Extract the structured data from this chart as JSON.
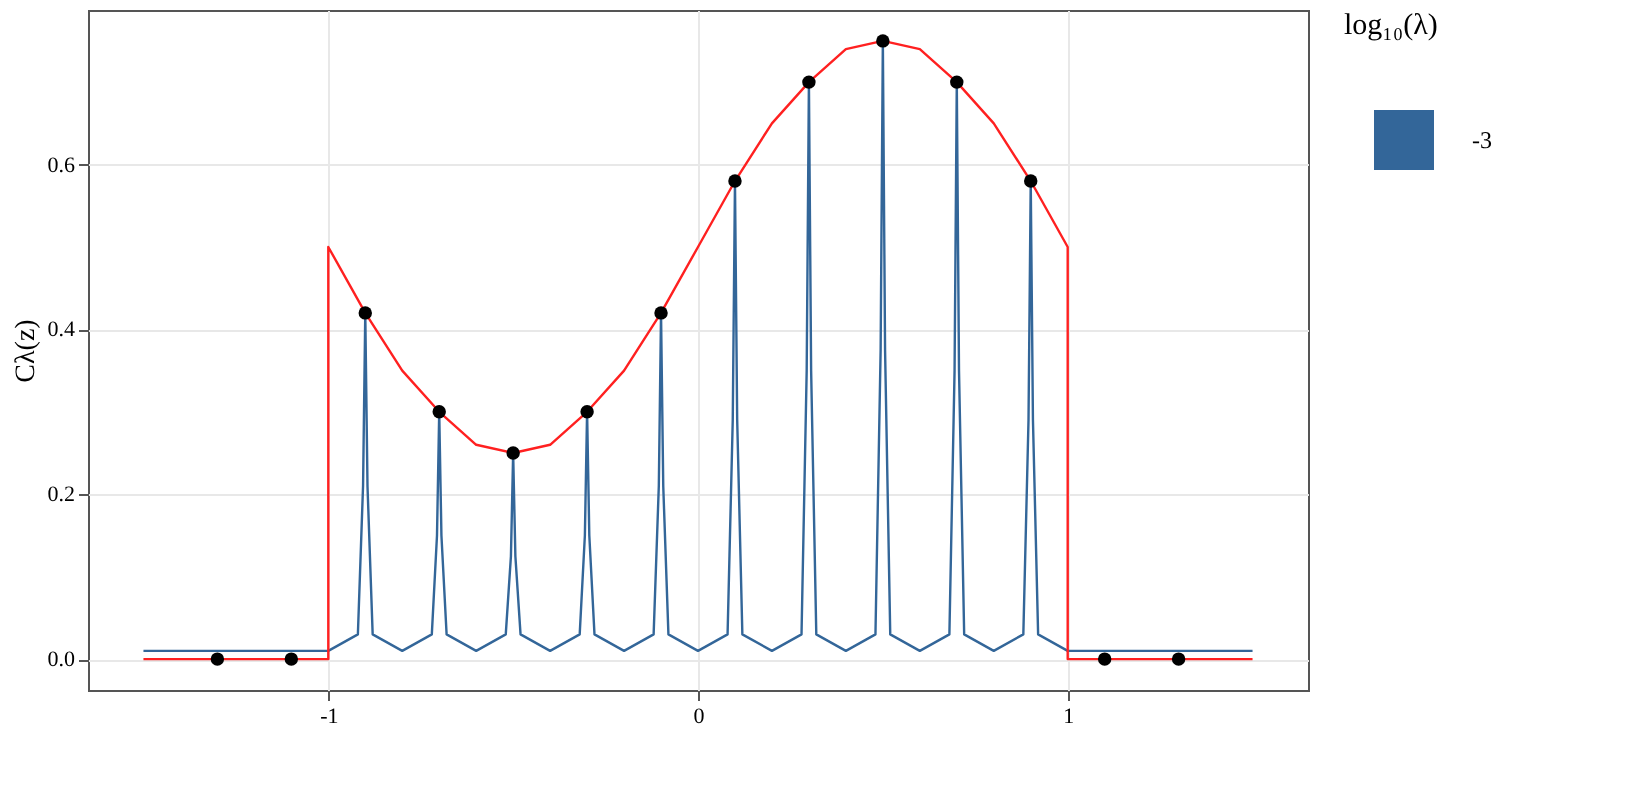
{
  "chart_data": {
    "type": "line",
    "ylabel": "Cλ(z)",
    "legend_title": "log₁₀(λ)",
    "legend": "right",
    "grid": true,
    "xlim": [
      -1.65,
      1.65
    ],
    "xticks": [
      -1,
      0,
      1
    ],
    "ylim": [
      -0.0375,
      0.7875
    ],
    "yticks": [
      {
        "value": 0,
        "label": "0.0"
      },
      {
        "value": 0.2,
        "label": "0.2"
      },
      {
        "value": 0.4,
        "label": "0.4"
      },
      {
        "value": 0.6,
        "label": "0.6"
      }
    ],
    "series": [
      {
        "name": "-3",
        "color": "#336699",
        "x": [
          -1.5,
          -1.0,
          -0.92,
          -0.906,
          -0.9,
          -0.894,
          -0.88,
          -0.8,
          -0.72,
          -0.706,
          -0.7,
          -0.694,
          -0.68,
          -0.6,
          -0.52,
          -0.506,
          -0.5,
          -0.494,
          -0.48,
          -0.4,
          -0.32,
          -0.306,
          -0.3,
          -0.294,
          -0.28,
          -0.2,
          -0.12,
          -0.106,
          -0.1,
          -0.094,
          -0.08,
          0.0,
          0.08,
          0.094,
          0.1,
          0.106,
          0.12,
          0.2,
          0.28,
          0.294,
          0.3,
          0.306,
          0.32,
          0.4,
          0.48,
          0.494,
          0.5,
          0.506,
          0.52,
          0.6,
          0.68,
          0.694,
          0.7,
          0.706,
          0.72,
          0.8,
          0.88,
          0.894,
          0.9,
          0.906,
          0.92,
          1.0,
          1.5
        ],
        "values": [
          0.01,
          0.01,
          0.03,
          0.21,
          0.42,
          0.21,
          0.03,
          0.01,
          0.03,
          0.15,
          0.3,
          0.15,
          0.03,
          0.01,
          0.03,
          0.125,
          0.25,
          0.125,
          0.03,
          0.01,
          0.03,
          0.15,
          0.3,
          0.15,
          0.03,
          0.01,
          0.03,
          0.21,
          0.42,
          0.21,
          0.03,
          0.01,
          0.03,
          0.29,
          0.58,
          0.29,
          0.03,
          0.01,
          0.03,
          0.35,
          0.7,
          0.35,
          0.03,
          0.01,
          0.03,
          0.375,
          0.75,
          0.375,
          0.03,
          0.01,
          0.03,
          0.35,
          0.7,
          0.35,
          0.03,
          0.01,
          0.03,
          0.29,
          0.58,
          0.29,
          0.03,
          0.01,
          0.01
        ]
      },
      {
        "color": "#ff2020",
        "x": [
          -1.5,
          -1.0,
          -1.0,
          -0.9,
          -0.8,
          -0.7,
          -0.6,
          -0.5,
          -0.4,
          -0.3,
          -0.2,
          -0.1,
          0.0,
          0.1,
          0.2,
          0.3,
          0.4,
          0.5,
          0.6,
          0.7,
          0.8,
          0.9,
          1.0,
          1.0,
          1.5
        ],
        "values": [
          0,
          0,
          0.5,
          0.42,
          0.35,
          0.3,
          0.26,
          0.25,
          0.26,
          0.3,
          0.35,
          0.42,
          0.5,
          0.58,
          0.65,
          0.7,
          0.74,
          0.75,
          0.74,
          0.7,
          0.65,
          0.58,
          0.5,
          0,
          0
        ]
      },
      {
        "color": "#000000",
        "type": "scatter",
        "marker": "circle",
        "x": [
          -1.3,
          -1.1,
          -0.9,
          -0.7,
          -0.5,
          -0.3,
          -0.1,
          0.1,
          0.3,
          0.5,
          0.7,
          0.9,
          1.1,
          1.3
        ],
        "values": [
          0,
          0,
          0.42,
          0.3,
          0.25,
          0.3,
          0.42,
          0.58,
          0.7,
          0.75,
          0.7,
          0.58,
          0,
          0
        ]
      }
    ]
  }
}
